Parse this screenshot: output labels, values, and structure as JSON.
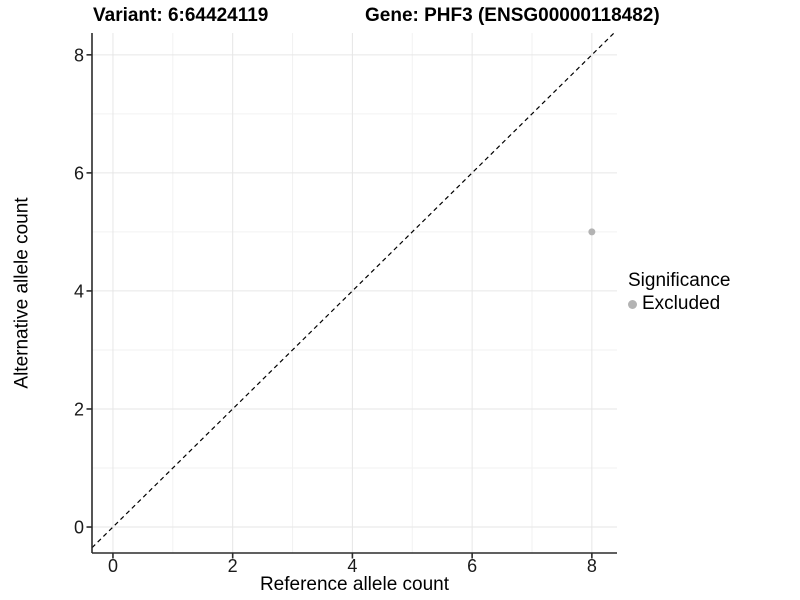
{
  "figure": {
    "title_variant": "Variant: 6:64424119",
    "title_gene": "Gene: PHF3 (ENSG00000118482)"
  },
  "chart_data": {
    "type": "scatter",
    "titles": [
      "Variant: 6:64424119",
      "Gene: PHF3 (ENSG00000118482)"
    ],
    "xlabel": "Reference allele count",
    "ylabel": "Alternative allele count",
    "x_ticks": [
      0,
      2,
      4,
      6,
      8
    ],
    "y_ticks": [
      0,
      2,
      4,
      6,
      8
    ],
    "x_minor_ticks": [
      1,
      3,
      5,
      7
    ],
    "y_minor_ticks": [
      1,
      3,
      5,
      7
    ],
    "xlim": [
      -0.35,
      8.42
    ],
    "ylim": [
      -0.44,
      8.37
    ],
    "grid": true,
    "reference_line": {
      "type": "identity",
      "equation": "y = x",
      "style": "dashed",
      "color": "#000000"
    },
    "series": [
      {
        "name": "Excluded",
        "color": "#b3b3b3",
        "points": [
          {
            "x": 8,
            "y": 5
          }
        ]
      }
    ],
    "legend": {
      "title": "Significance",
      "position": "right",
      "items": [
        {
          "label": "Excluded",
          "color": "#b3b3b3"
        }
      ]
    }
  },
  "colors": {
    "background": "#ffffff",
    "grid_major": "#e6e6e6",
    "grid_minor": "#f2f2f2",
    "axis": "#2b2b2b",
    "tick_label": "#1a1a1a",
    "point": "#b3b3b3"
  }
}
